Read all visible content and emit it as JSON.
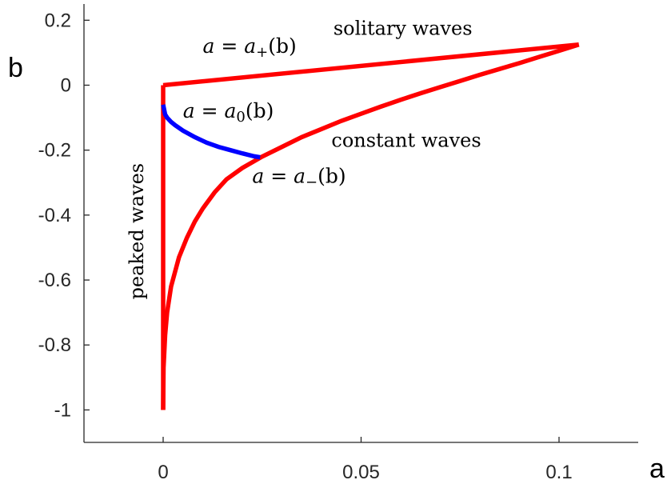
{
  "chart_data": {
    "type": "line",
    "title": "",
    "xlabel": "a",
    "ylabel": "b",
    "xlim": [
      -0.02,
      0.12
    ],
    "ylim": [
      -1.1,
      0.25
    ],
    "grid": false,
    "xticks": [
      0,
      0.05,
      0.1
    ],
    "xtick_labels": [
      "0",
      "0.05",
      "0.1"
    ],
    "yticks": [
      0.2,
      0,
      -0.2,
      -0.4,
      -0.6,
      -0.8,
      -1
    ],
    "ytick_labels": [
      "0.2",
      "0",
      "-0.2",
      "-0.4",
      "-0.6",
      "-0.8",
      "-1"
    ],
    "series": [
      {
        "key": "a-plus",
        "color": "#ff0000",
        "x": [
          0,
          0.105
        ],
        "y": [
          0,
          0.125
        ]
      },
      {
        "key": "a-minus",
        "color": "#ff0000",
        "x": [
          0,
          0.0001,
          0.0005,
          0.001,
          0.002,
          0.004,
          0.006,
          0.008,
          0.01,
          0.013,
          0.016,
          0.02,
          0.025,
          0.03,
          0.035,
          0.04,
          0.045,
          0.05,
          0.055,
          0.06,
          0.065,
          0.07,
          0.075,
          0.08,
          0.085,
          0.09,
          0.095,
          0.1,
          0.105
        ],
        "y": [
          -1,
          -0.87,
          -0.77,
          -0.7,
          -0.62,
          -0.53,
          -0.47,
          -0.42,
          -0.38,
          -0.33,
          -0.29,
          -0.255,
          -0.22,
          -0.19,
          -0.16,
          -0.135,
          -0.11,
          -0.088,
          -0.066,
          -0.045,
          -0.025,
          -0.006,
          0.013,
          0.032,
          0.05,
          0.068,
          0.087,
          0.106,
          0.125
        ]
      },
      {
        "key": "peaked",
        "color": "#ff0000",
        "x": [
          0,
          0
        ],
        "y": [
          -1,
          0
        ]
      },
      {
        "key": "a-zero",
        "color": "#0000ff",
        "x": [
          0,
          0.0005,
          0.001,
          0.002,
          0.003,
          0.005,
          0.008,
          0.011,
          0.014,
          0.017,
          0.02,
          0.023,
          0.0245
        ],
        "y": [
          -0.06,
          -0.09,
          -0.1,
          -0.113,
          -0.123,
          -0.14,
          -0.16,
          -0.177,
          -0.19,
          -0.2,
          -0.21,
          -0.219,
          -0.222
        ]
      }
    ],
    "annotations": {
      "a_plus": {
        "lhs": "a",
        "eq": " = ",
        "fn": "a",
        "sub": "+",
        "arg": "(b)",
        "x": 0.01,
        "y": 0.1
      },
      "a_zero": {
        "lhs": "a",
        "eq": " = ",
        "fn": "a",
        "sub": "0",
        "arg": "(b)",
        "x": 0.005,
        "y": -0.1
      },
      "a_minus": {
        "lhs": "a",
        "eq": " = ",
        "fn": "a",
        "sub": "−",
        "arg": "(b)",
        "x": 0.0225,
        "y": -0.3
      },
      "solitary": {
        "text": "solitary waves",
        "x": 0.043,
        "y": 0.155
      },
      "constant": {
        "text": "constant waves",
        "x": 0.0425,
        "y": -0.19
      },
      "peaked": {
        "text": "peaked waves",
        "x": -0.005,
        "y": -0.45
      }
    }
  }
}
